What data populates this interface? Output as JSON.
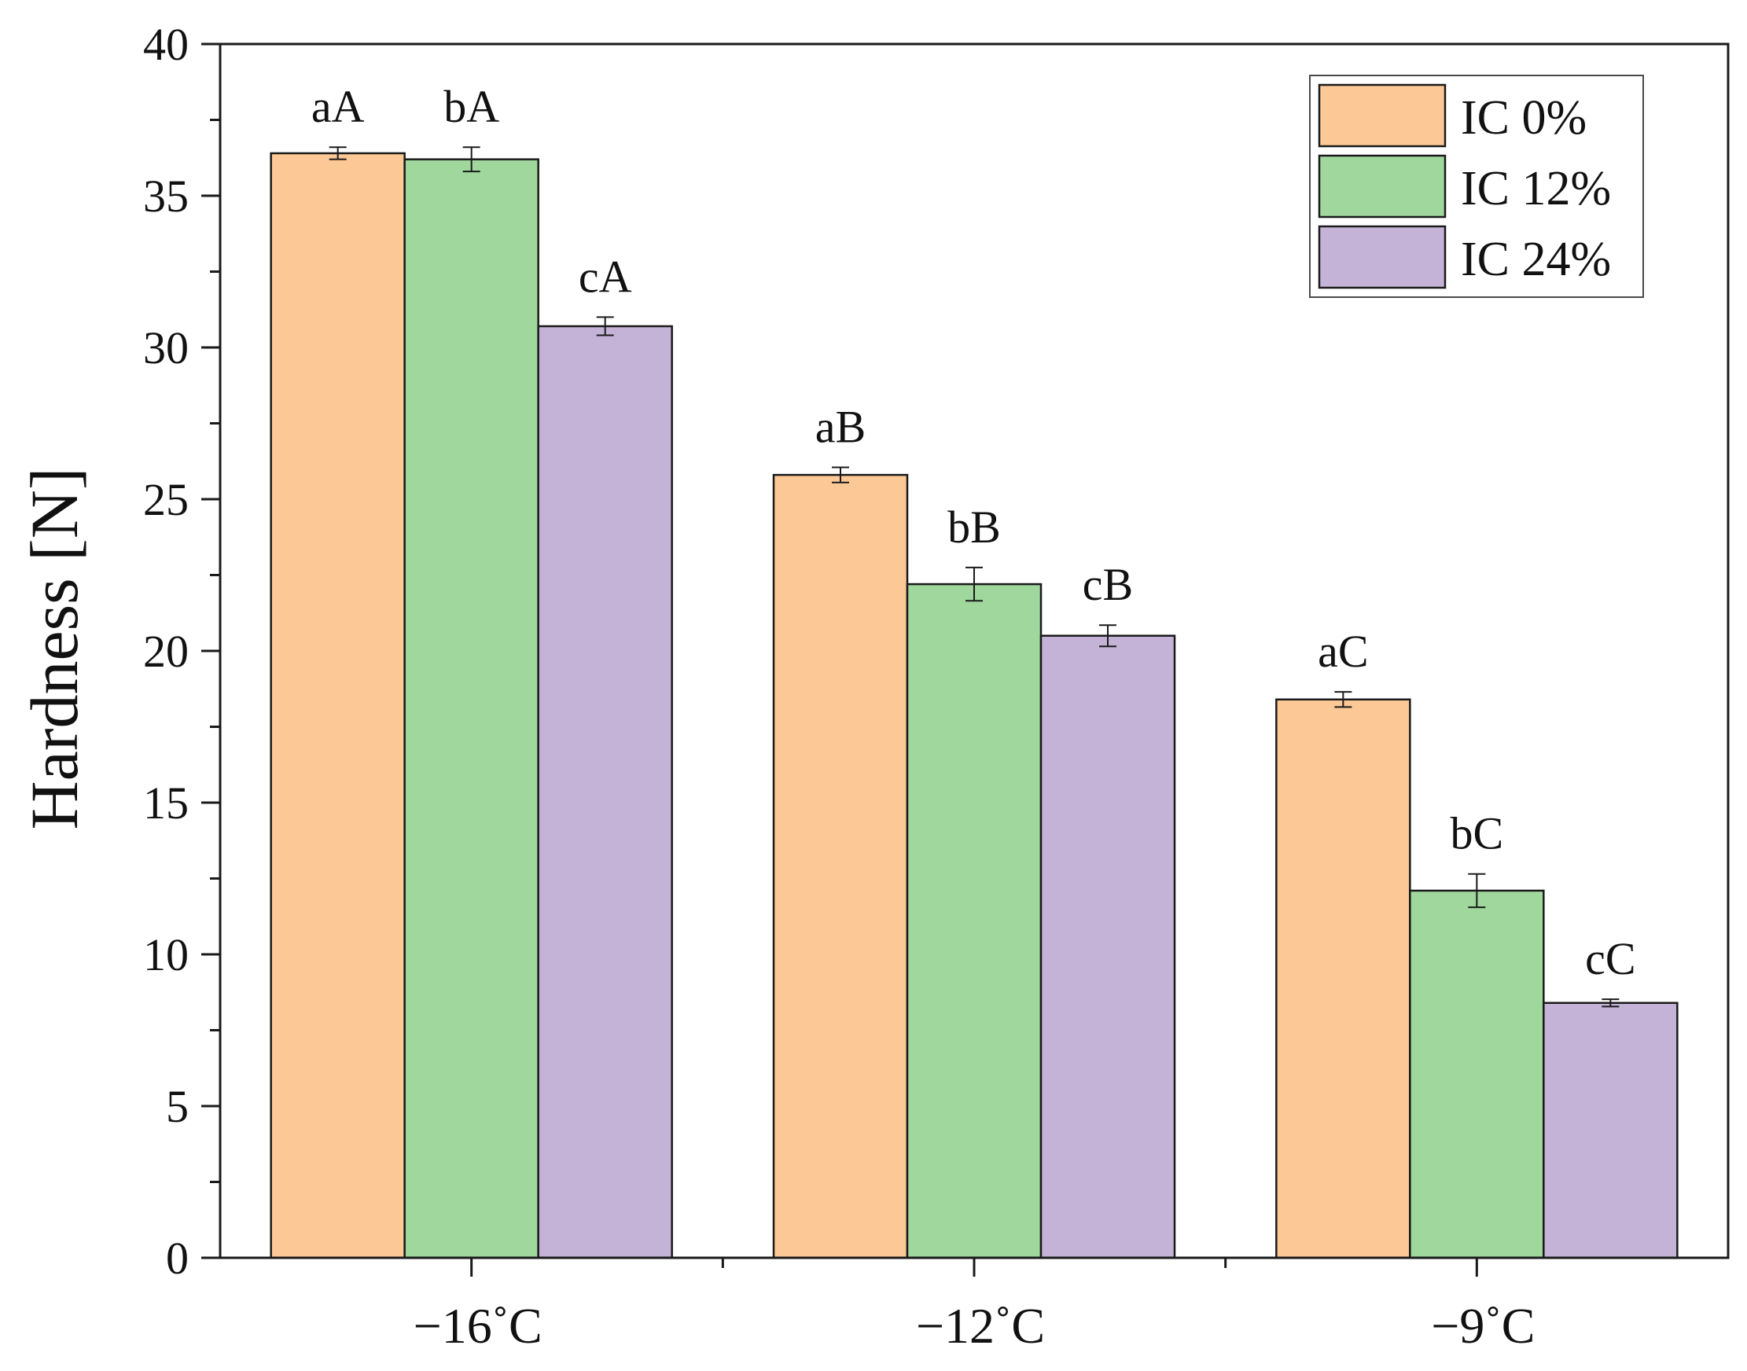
{
  "chart_data": {
    "type": "bar",
    "title": "",
    "xlabel": "",
    "ylabel": "Hardness [N]",
    "ylim": [
      0,
      40
    ],
    "yticks": [
      "0",
      "5",
      "10",
      "15",
      "20",
      "25",
      "30",
      "35",
      "40"
    ],
    "categories": [
      "−16˚C",
      "−12˚C",
      "−9˚C"
    ],
    "series": [
      {
        "name": "IC 0%",
        "color": "#FCC895",
        "values": [
          36.4,
          25.8,
          18.4
        ],
        "errors": [
          0.2,
          0.25,
          0.25
        ],
        "letters": [
          "aA",
          "aB",
          "aC"
        ]
      },
      {
        "name": "IC 12%",
        "color": "#9FD79D",
        "values": [
          36.2,
          22.2,
          12.1
        ],
        "errors": [
          0.4,
          0.55,
          0.55
        ],
        "letters": [
          "bA",
          "bB",
          "bC"
        ]
      },
      {
        "name": "IC 24%",
        "color": "#C4B3D7",
        "values": [
          30.7,
          20.5,
          8.4
        ],
        "errors": [
          0.3,
          0.35,
          0.12
        ],
        "letters": [
          "cA",
          "cB",
          "cC"
        ]
      }
    ],
    "legend_position": "top-right",
    "grid": false
  }
}
